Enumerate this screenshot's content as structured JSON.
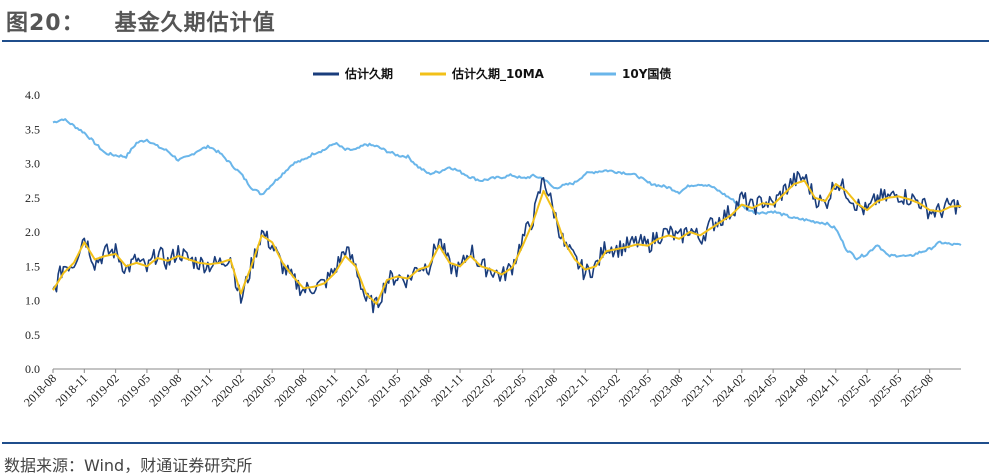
{
  "header": {
    "figure_no": "图20：",
    "title": "基金久期估计值"
  },
  "footer": {
    "source": "数据来源：Wind，财通证券研究所"
  },
  "colors": {
    "est": "#1a3d7c",
    "ma": "#f2c018",
    "bond": "#6ab6ea"
  },
  "chart_data": {
    "type": "line",
    "title": "基金久期估计值",
    "ylim": [
      0.0,
      4.0
    ],
    "yticks": [
      "0.0",
      "0.5",
      "1.0",
      "1.5",
      "2.0",
      "2.5",
      "3.0",
      "3.5",
      "4.0"
    ],
    "xlim": [
      "2018-08",
      "2025-11"
    ],
    "xticks": [
      "2018-08",
      "2018-11",
      "2019-02",
      "2019-05",
      "2019-08",
      "2019-11",
      "2020-02",
      "2020-05",
      "2020-08",
      "2020-11",
      "2021-02",
      "2021-05",
      "2021-08",
      "2021-11",
      "2022-02",
      "2022-05",
      "2022-08",
      "2022-11",
      "2023-02",
      "2023-05",
      "2023-08",
      "2023-11",
      "2024-02",
      "2024-05",
      "2024-08",
      "2024-11",
      "2025-02",
      "2025-05",
      "2025-08"
    ],
    "legend": [
      "估计久期",
      "估计久期_10MA",
      "10Y国债"
    ],
    "legend_position": "top-center",
    "series": [
      {
        "name": "估计久期",
        "color_key": "est",
        "noise": 0.13,
        "points": [
          [
            "2018-08",
            1.12
          ],
          [
            "2018-09",
            1.5
          ],
          [
            "2018-10",
            1.55
          ],
          [
            "2018-11",
            1.95
          ],
          [
            "2018-12",
            1.55
          ],
          [
            "2019-01",
            1.7
          ],
          [
            "2019-02",
            1.72
          ],
          [
            "2019-03",
            1.45
          ],
          [
            "2019-04",
            1.6
          ],
          [
            "2019-05",
            1.45
          ],
          [
            "2019-06",
            1.7
          ],
          [
            "2019-07",
            1.55
          ],
          [
            "2019-08",
            1.72
          ],
          [
            "2019-09",
            1.6
          ],
          [
            "2019-10",
            1.55
          ],
          [
            "2019-11",
            1.52
          ],
          [
            "2019-12",
            1.55
          ],
          [
            "2020-01",
            1.65
          ],
          [
            "2020-02",
            1.0
          ],
          [
            "2020-03",
            1.5
          ],
          [
            "2020-04",
            2.0
          ],
          [
            "2020-05",
            1.8
          ],
          [
            "2020-06",
            1.5
          ],
          [
            "2020-07",
            1.3
          ],
          [
            "2020-08",
            1.15
          ],
          [
            "2020-09",
            1.2
          ],
          [
            "2020-10",
            1.25
          ],
          [
            "2020-11",
            1.45
          ],
          [
            "2020-12",
            1.75
          ],
          [
            "2021-01",
            1.5
          ],
          [
            "2021-02",
            1.0
          ],
          [
            "2021-03",
            0.92
          ],
          [
            "2021-04",
            1.3
          ],
          [
            "2021-05",
            1.35
          ],
          [
            "2021-06",
            1.3
          ],
          [
            "2021-07",
            1.5
          ],
          [
            "2021-08",
            1.5
          ],
          [
            "2021-09",
            1.9
          ],
          [
            "2021-10",
            1.5
          ],
          [
            "2021-11",
            1.45
          ],
          [
            "2021-12",
            1.75
          ],
          [
            "2022-01",
            1.5
          ],
          [
            "2022-02",
            1.45
          ],
          [
            "2022-03",
            1.35
          ],
          [
            "2022-04",
            1.5
          ],
          [
            "2022-05",
            1.9
          ],
          [
            "2022-06",
            2.2
          ],
          [
            "2022-07",
            2.8
          ],
          [
            "2022-08",
            2.3
          ],
          [
            "2022-09",
            1.8
          ],
          [
            "2022-10",
            1.6
          ],
          [
            "2022-11",
            1.4
          ],
          [
            "2022-12",
            1.5
          ],
          [
            "2023-01",
            1.8
          ],
          [
            "2023-02",
            1.75
          ],
          [
            "2023-03",
            1.8
          ],
          [
            "2023-04",
            1.85
          ],
          [
            "2023-05",
            1.8
          ],
          [
            "2023-06",
            1.95
          ],
          [
            "2023-07",
            2.0
          ],
          [
            "2023-08",
            1.9
          ],
          [
            "2023-09",
            2.05
          ],
          [
            "2023-10",
            1.9
          ],
          [
            "2023-11",
            2.1
          ],
          [
            "2023-12",
            2.2
          ],
          [
            "2024-01",
            2.3
          ],
          [
            "2024-02",
            2.5
          ],
          [
            "2024-03",
            2.35
          ],
          [
            "2024-04",
            2.45
          ],
          [
            "2024-05",
            2.4
          ],
          [
            "2024-06",
            2.6
          ],
          [
            "2024-07",
            2.75
          ],
          [
            "2024-08",
            2.8
          ],
          [
            "2024-09",
            2.5
          ],
          [
            "2024-10",
            2.4
          ],
          [
            "2024-11",
            2.75
          ],
          [
            "2024-12",
            2.6
          ],
          [
            "2025-01",
            2.4
          ],
          [
            "2025-02",
            2.3
          ],
          [
            "2025-03",
            2.5
          ],
          [
            "2025-04",
            2.5
          ],
          [
            "2025-05",
            2.55
          ],
          [
            "2025-06",
            2.5
          ],
          [
            "2025-07",
            2.45
          ],
          [
            "2025-08",
            2.3
          ],
          [
            "2025-09",
            2.3
          ],
          [
            "2025-10",
            2.4
          ],
          [
            "2025-11",
            2.38
          ]
        ]
      },
      {
        "name": "估计久期_10MA",
        "color_key": "ma",
        "noise": 0.0,
        "points": [
          [
            "2018-08",
            1.15
          ],
          [
            "2018-09",
            1.4
          ],
          [
            "2018-10",
            1.55
          ],
          [
            "2018-11",
            1.85
          ],
          [
            "2018-12",
            1.6
          ],
          [
            "2019-01",
            1.65
          ],
          [
            "2019-02",
            1.68
          ],
          [
            "2019-03",
            1.5
          ],
          [
            "2019-04",
            1.55
          ],
          [
            "2019-05",
            1.5
          ],
          [
            "2019-06",
            1.62
          ],
          [
            "2019-07",
            1.58
          ],
          [
            "2019-08",
            1.65
          ],
          [
            "2019-09",
            1.6
          ],
          [
            "2019-10",
            1.55
          ],
          [
            "2019-11",
            1.53
          ],
          [
            "2019-12",
            1.55
          ],
          [
            "2020-01",
            1.6
          ],
          [
            "2020-02",
            1.1
          ],
          [
            "2020-03",
            1.5
          ],
          [
            "2020-04",
            1.95
          ],
          [
            "2020-05",
            1.85
          ],
          [
            "2020-06",
            1.55
          ],
          [
            "2020-07",
            1.35
          ],
          [
            "2020-08",
            1.18
          ],
          [
            "2020-09",
            1.2
          ],
          [
            "2020-10",
            1.25
          ],
          [
            "2020-11",
            1.4
          ],
          [
            "2020-12",
            1.65
          ],
          [
            "2021-01",
            1.5
          ],
          [
            "2021-02",
            1.1
          ],
          [
            "2021-03",
            0.95
          ],
          [
            "2021-04",
            1.3
          ],
          [
            "2021-05",
            1.35
          ],
          [
            "2021-06",
            1.32
          ],
          [
            "2021-07",
            1.45
          ],
          [
            "2021-08",
            1.5
          ],
          [
            "2021-09",
            1.8
          ],
          [
            "2021-10",
            1.55
          ],
          [
            "2021-11",
            1.5
          ],
          [
            "2021-12",
            1.65
          ],
          [
            "2022-01",
            1.5
          ],
          [
            "2022-02",
            1.45
          ],
          [
            "2022-03",
            1.38
          ],
          [
            "2022-04",
            1.48
          ],
          [
            "2022-05",
            1.8
          ],
          [
            "2022-06",
            2.15
          ],
          [
            "2022-07",
            2.6
          ],
          [
            "2022-08",
            2.3
          ],
          [
            "2022-09",
            1.85
          ],
          [
            "2022-10",
            1.6
          ],
          [
            "2022-11",
            1.45
          ],
          [
            "2022-12",
            1.5
          ],
          [
            "2023-01",
            1.72
          ],
          [
            "2023-02",
            1.75
          ],
          [
            "2023-03",
            1.78
          ],
          [
            "2023-04",
            1.82
          ],
          [
            "2023-05",
            1.8
          ],
          [
            "2023-06",
            1.9
          ],
          [
            "2023-07",
            1.95
          ],
          [
            "2023-08",
            1.9
          ],
          [
            "2023-09",
            2.0
          ],
          [
            "2023-10",
            1.95
          ],
          [
            "2023-11",
            2.05
          ],
          [
            "2023-12",
            2.15
          ],
          [
            "2024-01",
            2.25
          ],
          [
            "2024-02",
            2.4
          ],
          [
            "2024-03",
            2.35
          ],
          [
            "2024-04",
            2.42
          ],
          [
            "2024-05",
            2.4
          ],
          [
            "2024-06",
            2.55
          ],
          [
            "2024-07",
            2.7
          ],
          [
            "2024-08",
            2.75
          ],
          [
            "2024-09",
            2.5
          ],
          [
            "2024-10",
            2.45
          ],
          [
            "2024-11",
            2.7
          ],
          [
            "2024-12",
            2.6
          ],
          [
            "2025-01",
            2.42
          ],
          [
            "2025-02",
            2.32
          ],
          [
            "2025-03",
            2.45
          ],
          [
            "2025-04",
            2.5
          ],
          [
            "2025-05",
            2.52
          ],
          [
            "2025-06",
            2.48
          ],
          [
            "2025-07",
            2.42
          ],
          [
            "2025-08",
            2.32
          ],
          [
            "2025-09",
            2.3
          ],
          [
            "2025-10",
            2.37
          ],
          [
            "2025-11",
            2.38
          ]
        ]
      },
      {
        "name": "10Y国债",
        "color_key": "bond",
        "noise": 0.02,
        "points": [
          [
            "2018-08",
            3.6
          ],
          [
            "2018-09",
            3.65
          ],
          [
            "2018-10",
            3.55
          ],
          [
            "2018-11",
            3.45
          ],
          [
            "2018-12",
            3.3
          ],
          [
            "2019-01",
            3.15
          ],
          [
            "2019-02",
            3.12
          ],
          [
            "2019-03",
            3.1
          ],
          [
            "2019-04",
            3.3
          ],
          [
            "2019-05",
            3.35
          ],
          [
            "2019-06",
            3.25
          ],
          [
            "2019-07",
            3.18
          ],
          [
            "2019-08",
            3.05
          ],
          [
            "2019-09",
            3.1
          ],
          [
            "2019-10",
            3.2
          ],
          [
            "2019-11",
            3.25
          ],
          [
            "2019-12",
            3.15
          ],
          [
            "2020-01",
            3.0
          ],
          [
            "2020-02",
            2.85
          ],
          [
            "2020-03",
            2.65
          ],
          [
            "2020-04",
            2.55
          ],
          [
            "2020-05",
            2.7
          ],
          [
            "2020-06",
            2.85
          ],
          [
            "2020-07",
            3.0
          ],
          [
            "2020-08",
            3.05
          ],
          [
            "2020-09",
            3.15
          ],
          [
            "2020-10",
            3.2
          ],
          [
            "2020-11",
            3.3
          ],
          [
            "2020-12",
            3.2
          ],
          [
            "2021-01",
            3.2
          ],
          [
            "2021-02",
            3.28
          ],
          [
            "2021-03",
            3.25
          ],
          [
            "2021-04",
            3.18
          ],
          [
            "2021-05",
            3.12
          ],
          [
            "2021-06",
            3.1
          ],
          [
            "2021-07",
            2.95
          ],
          [
            "2021-08",
            2.85
          ],
          [
            "2021-09",
            2.88
          ],
          [
            "2021-10",
            2.95
          ],
          [
            "2021-11",
            2.88
          ],
          [
            "2021-12",
            2.8
          ],
          [
            "2022-01",
            2.75
          ],
          [
            "2022-02",
            2.78
          ],
          [
            "2022-03",
            2.8
          ],
          [
            "2022-04",
            2.83
          ],
          [
            "2022-05",
            2.78
          ],
          [
            "2022-06",
            2.82
          ],
          [
            "2022-07",
            2.78
          ],
          [
            "2022-08",
            2.64
          ],
          [
            "2022-09",
            2.68
          ],
          [
            "2022-10",
            2.72
          ],
          [
            "2022-11",
            2.85
          ],
          [
            "2022-12",
            2.88
          ],
          [
            "2023-01",
            2.9
          ],
          [
            "2023-02",
            2.88
          ],
          [
            "2023-03",
            2.86
          ],
          [
            "2023-04",
            2.82
          ],
          [
            "2023-05",
            2.72
          ],
          [
            "2023-06",
            2.68
          ],
          [
            "2023-07",
            2.65
          ],
          [
            "2023-08",
            2.58
          ],
          [
            "2023-09",
            2.68
          ],
          [
            "2023-10",
            2.7
          ],
          [
            "2023-11",
            2.67
          ],
          [
            "2023-12",
            2.58
          ],
          [
            "2024-01",
            2.48
          ],
          [
            "2024-02",
            2.38
          ],
          [
            "2024-03",
            2.3
          ],
          [
            "2024-04",
            2.28
          ],
          [
            "2024-05",
            2.3
          ],
          [
            "2024-06",
            2.25
          ],
          [
            "2024-07",
            2.2
          ],
          [
            "2024-08",
            2.18
          ],
          [
            "2024-09",
            2.15
          ],
          [
            "2024-10",
            2.13
          ],
          [
            "2024-11",
            2.05
          ],
          [
            "2024-12",
            1.75
          ],
          [
            "2025-01",
            1.62
          ],
          [
            "2025-02",
            1.68
          ],
          [
            "2025-03",
            1.82
          ],
          [
            "2025-04",
            1.65
          ],
          [
            "2025-05",
            1.66
          ],
          [
            "2025-06",
            1.64
          ],
          [
            "2025-07",
            1.7
          ],
          [
            "2025-08",
            1.75
          ],
          [
            "2025-09",
            1.85
          ],
          [
            "2025-10",
            1.82
          ],
          [
            "2025-11",
            1.81
          ]
        ]
      }
    ]
  }
}
